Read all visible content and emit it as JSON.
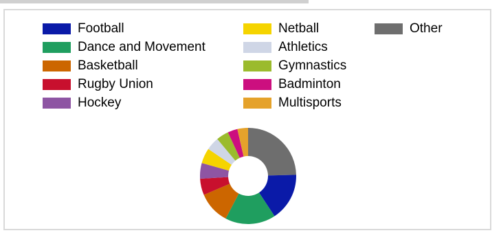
{
  "chart_data": {
    "type": "pie",
    "style": "donut",
    "title": "",
    "legend_position": "top",
    "categories": [
      "Football",
      "Dance and Movement",
      "Basketball",
      "Rugby Union",
      "Hockey",
      "Netball",
      "Athletics",
      "Gymnastics",
      "Badminton",
      "Multisports",
      "Other"
    ],
    "values": [
      16.6,
      17.5,
      11.2,
      5.7,
      5.4,
      5.3,
      4.6,
      4.3,
      3.4,
      3.7,
      25.4
    ],
    "colors": [
      "#0a1aa8",
      "#1f9e5f",
      "#cc6600",
      "#c8102e",
      "#8e55a3",
      "#f5d400",
      "#cfd6e6",
      "#9bbb2d",
      "#cc0f7f",
      "#e5a22b",
      "#6e6e6e"
    ]
  }
}
